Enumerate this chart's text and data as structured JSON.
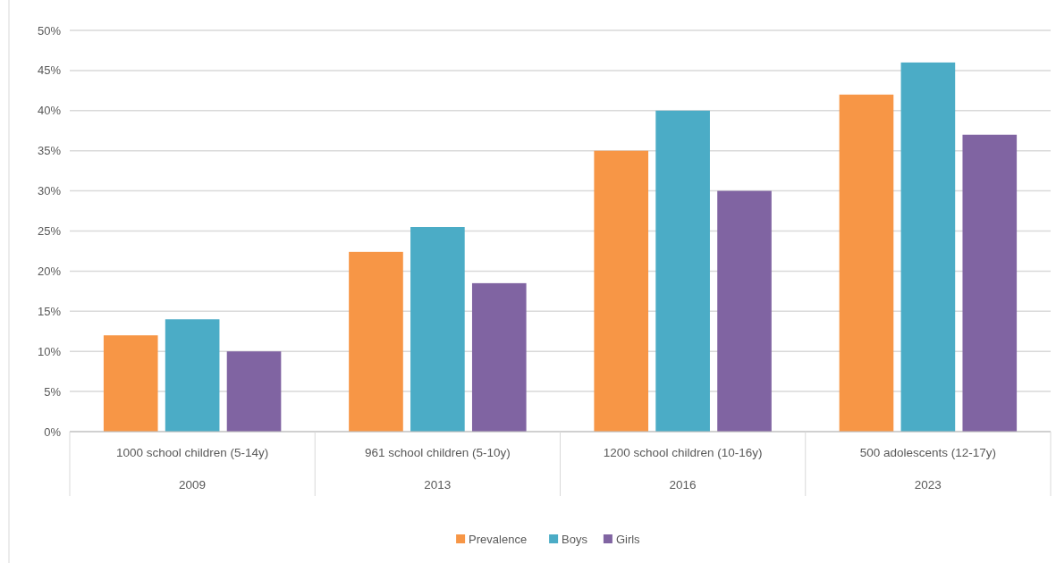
{
  "chart_data": {
    "type": "bar",
    "categories": [
      "1000 school children (5-14y)\n2009",
      "961 school children (5-10y)\n2013",
      "1200 school children (10-16y)\n2016",
      "500 adolescents (12-17y)\n2023"
    ],
    "series": [
      {
        "name": "Prevalence",
        "color": "#f79646",
        "values": [
          12,
          22.4,
          35,
          42
        ]
      },
      {
        "name": "Boys",
        "color": "#4bacc6",
        "values": [
          14,
          25.5,
          40,
          46
        ]
      },
      {
        "name": "Girls",
        "color": "#8064a2",
        "values": [
          10,
          18.5,
          30,
          37
        ]
      }
    ],
    "ylim": [
      0,
      50
    ],
    "yticks": [
      {
        "value": 0,
        "label": "0%"
      },
      {
        "value": 5,
        "label": "5%"
      },
      {
        "value": 10,
        "label": "10%"
      },
      {
        "value": 15,
        "label": "15%"
      },
      {
        "value": 20,
        "label": "20%"
      },
      {
        "value": 25,
        "label": "25%"
      },
      {
        "value": 30,
        "label": "30%"
      },
      {
        "value": 35,
        "label": "35%"
      },
      {
        "value": 40,
        "label": "40%"
      },
      {
        "value": 45,
        "label": "45%"
      },
      {
        "value": 50,
        "label": "50%"
      }
    ],
    "grid": "y",
    "legend": "bottom"
  }
}
